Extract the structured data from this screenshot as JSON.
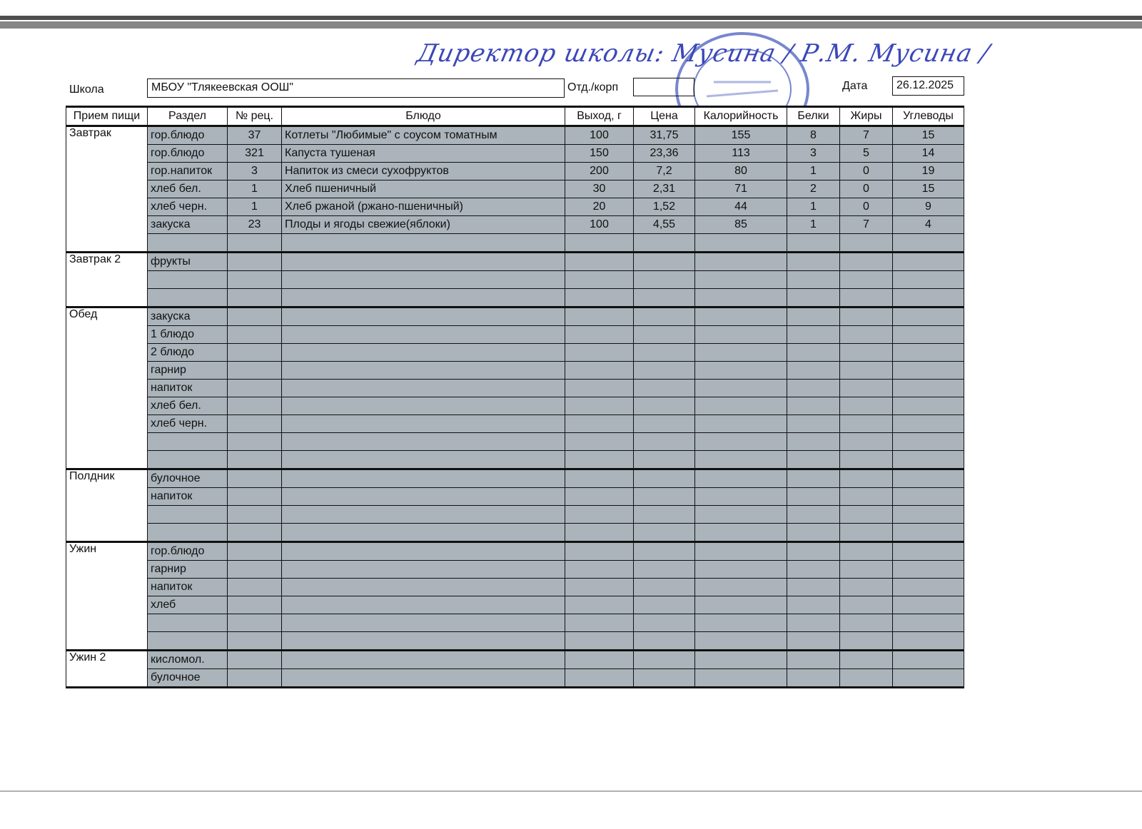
{
  "signature_line": "Директор школы: Мусина / Р.М. Мусина /",
  "stamp_text": "МБОУ \"Тлякеевская ООШ\"",
  "header": {
    "school_label": "Школа",
    "school_value": "МБОУ \"Тлякеевская ООШ\"",
    "dept_label": "Отд./корп",
    "dept_value": "",
    "date_label": "Дата",
    "date_value": "26.12.2025"
  },
  "columns": [
    "Прием пищи",
    "Раздел",
    "№ рец.",
    "Блюдо",
    "Выход, г",
    "Цена",
    "Калорийность",
    "Белки",
    "Жиры",
    "Углеводы"
  ],
  "groups": [
    {
      "meal": "Завтрак",
      "rows": [
        [
          "гор.блюдо",
          "37",
          "Котлеты \"Любимые\" с соусом томатным",
          "100",
          "31,75",
          "155",
          "8",
          "7",
          "15"
        ],
        [
          "гор.блюдо",
          "321",
          "Капуста тушеная",
          "150",
          "23,36",
          "113",
          "3",
          "5",
          "14"
        ],
        [
          "гор.напиток",
          "3",
          "Напиток из смеси сухофруктов",
          "200",
          "7,2",
          "80",
          "1",
          "0",
          "19"
        ],
        [
          "хлеб бел.",
          "1",
          "Хлеб пшеничный",
          "30",
          "2,31",
          "71",
          "2",
          "0",
          "15"
        ],
        [
          "хлеб черн.",
          "1",
          "Хлеб ржаной (ржано-пшеничный)",
          "20",
          "1,52",
          "44",
          "1",
          "0",
          "9"
        ],
        [
          "закуска",
          "23",
          "Плоды и ягоды свежие(яблоки)",
          "100",
          "4,55",
          "85",
          "1",
          "7",
          "4"
        ],
        [
          "",
          "",
          "",
          "",
          "",
          "",
          "",
          "",
          ""
        ]
      ]
    },
    {
      "meal": "Завтрак 2",
      "rows": [
        [
          "фрукты",
          "",
          "",
          "",
          "",
          "",
          "",
          "",
          ""
        ],
        [
          "",
          "",
          "",
          "",
          "",
          "",
          "",
          "",
          ""
        ],
        [
          "",
          "",
          "",
          "",
          "",
          "",
          "",
          "",
          ""
        ]
      ]
    },
    {
      "meal": "Обед",
      "rows": [
        [
          "закуска",
          "",
          "",
          "",
          "",
          "",
          "",
          "",
          ""
        ],
        [
          "1 блюдо",
          "",
          "",
          "",
          "",
          "",
          "",
          "",
          ""
        ],
        [
          "2 блюдо",
          "",
          "",
          "",
          "",
          "",
          "",
          "",
          ""
        ],
        [
          "гарнир",
          "",
          "",
          "",
          "",
          "",
          "",
          "",
          ""
        ],
        [
          "напиток",
          "",
          "",
          "",
          "",
          "",
          "",
          "",
          ""
        ],
        [
          "хлеб бел.",
          "",
          "",
          "",
          "",
          "",
          "",
          "",
          ""
        ],
        [
          "хлеб черн.",
          "",
          "",
          "",
          "",
          "",
          "",
          "",
          ""
        ],
        [
          "",
          "",
          "",
          "",
          "",
          "",
          "",
          "",
          ""
        ],
        [
          "",
          "",
          "",
          "",
          "",
          "",
          "",
          "",
          ""
        ]
      ]
    },
    {
      "meal": "Полдник",
      "rows": [
        [
          "булочное",
          "",
          "",
          "",
          "",
          "",
          "",
          "",
          ""
        ],
        [
          "напиток",
          "",
          "",
          "",
          "",
          "",
          "",
          "",
          ""
        ],
        [
          "",
          "",
          "",
          "",
          "",
          "",
          "",
          "",
          ""
        ],
        [
          "",
          "",
          "",
          "",
          "",
          "",
          "",
          "",
          ""
        ]
      ]
    },
    {
      "meal": "Ужин",
      "rows": [
        [
          "гор.блюдо",
          "",
          "",
          "",
          "",
          "",
          "",
          "",
          ""
        ],
        [
          "гарнир",
          "",
          "",
          "",
          "",
          "",
          "",
          "",
          ""
        ],
        [
          "напиток",
          "",
          "",
          "",
          "",
          "",
          "",
          "",
          ""
        ],
        [
          "хлеб",
          "",
          "",
          "",
          "",
          "",
          "",
          "",
          ""
        ],
        [
          "",
          "",
          "",
          "",
          "",
          "",
          "",
          "",
          ""
        ],
        [
          "",
          "",
          "",
          "",
          "",
          "",
          "",
          "",
          ""
        ]
      ]
    },
    {
      "meal": "Ужин 2",
      "rows": [
        [
          "кисломол.",
          "",
          "",
          "",
          "",
          "",
          "",
          "",
          ""
        ],
        [
          "булочное",
          "",
          "",
          "",
          "",
          "",
          "",
          "",
          ""
        ]
      ]
    }
  ]
}
